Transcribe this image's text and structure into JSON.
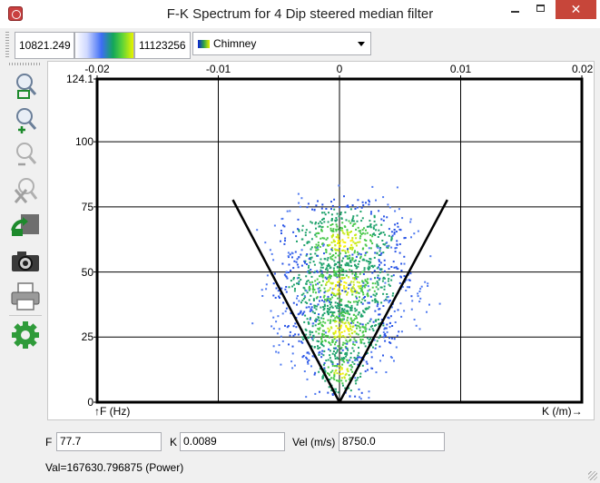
{
  "window": {
    "title": "F-K Spectrum for 4 Dip steered median filter",
    "minimize_icon": "minimize-icon",
    "maximize_icon": "maximize-icon",
    "close_icon": "close-icon"
  },
  "colorbar": {
    "clip_min": "10821.249",
    "clip_max": "11123256",
    "colortable": "Chimney"
  },
  "tools": [
    {
      "name": "zoom-rectangle-icon"
    },
    {
      "name": "zoom-in-icon"
    },
    {
      "name": "zoom-out-icon"
    },
    {
      "name": "cancel-zoom-icon"
    },
    {
      "name": "flip-icon"
    },
    {
      "name": "camera-icon"
    },
    {
      "name": "print-icon"
    },
    {
      "name": "settings-icon"
    }
  ],
  "chart_data": {
    "type": "heatmap",
    "xlabel": "K (/m)",
    "ylabel": "F (Hz)",
    "xlim": [
      -0.02,
      0.02
    ],
    "ylim": [
      0,
      124.1
    ],
    "x_ticks": [
      "-0.02",
      "-0.01",
      "0",
      "0.01",
      "0.02"
    ],
    "x_tick_values": [
      -0.02,
      -0.01,
      0,
      0.01,
      0.02
    ],
    "y_ticks": [
      "124.1",
      "100",
      "75",
      "50",
      "25",
      "0"
    ],
    "y_tick_values": [
      124.1,
      100,
      75,
      50,
      25,
      0
    ],
    "grid": true,
    "colortable": "Chimney",
    "velocity_fan": {
      "apex": [
        0,
        0
      ],
      "left_end": [
        -0.0088,
        77.7
      ],
      "right_end": [
        0.0089,
        77.7
      ]
    },
    "energy_clusters": [
      {
        "k": 0.0003,
        "f": 62,
        "spread_k": 0.0025,
        "spread_f": 8,
        "level": "high"
      },
      {
        "k": 0.0002,
        "f": 45,
        "spread_k": 0.0028,
        "spread_f": 7,
        "level": "high"
      },
      {
        "k": 0.0001,
        "f": 28,
        "spread_k": 0.0022,
        "spread_f": 7,
        "level": "high"
      },
      {
        "k": 0.0001,
        "f": 12,
        "spread_k": 0.0012,
        "spread_f": 5,
        "level": "medium"
      }
    ]
  },
  "readout": {
    "f_label": "F",
    "f_value": "77.7",
    "k_label": "K",
    "k_value": "0.0089",
    "vel_label": "Vel (m/s)",
    "vel_value": "8750.0"
  },
  "status": "Val=167630.796875 (Power)"
}
